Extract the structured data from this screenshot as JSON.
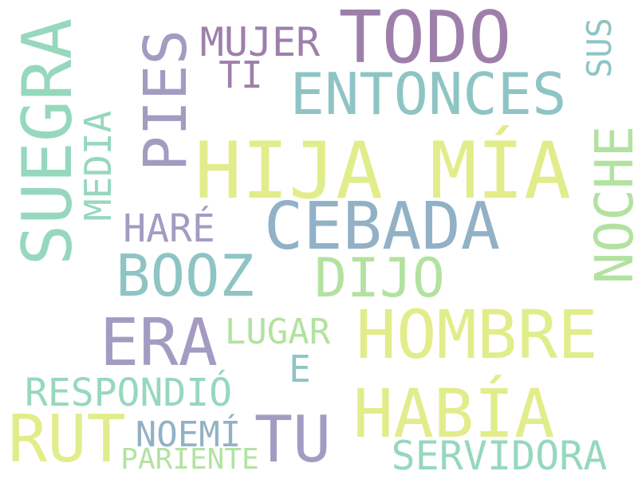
{
  "palette": {
    "background": "#ffffff",
    "purple": "#9e7fab",
    "lavender": "#a49bc2",
    "teal": "#8fc4c4",
    "blue": "#92b1c6",
    "mint": "#96d8bd",
    "lime": "#e1ed8b",
    "green": "#b3e2a0"
  },
  "words": {
    "todo": "TODO",
    "hija_mia": "HIJA MÍA",
    "suegra": "SUEGRA",
    "pies": "PIES",
    "entonces": "ENTONCES",
    "cebada": "CEBADA",
    "hombre": "HOMBRE",
    "booz": "BOOZ",
    "dijo": "DIJO",
    "era": "ERA",
    "noche": "NOCHE",
    "habia": "HABÍA",
    "rut": "RUT",
    "tu": "TU",
    "mujer": "MUJER",
    "sus": "SUS",
    "ti": "TI",
    "media": "MEDIA",
    "hare": "HARÉ",
    "lugar": "LUGAR",
    "e": "E",
    "respondio": "RESPONDIÓ",
    "noemi": "NOEMÍ",
    "servidora": "SERVIDORA",
    "pariente": "PARIENTE"
  }
}
